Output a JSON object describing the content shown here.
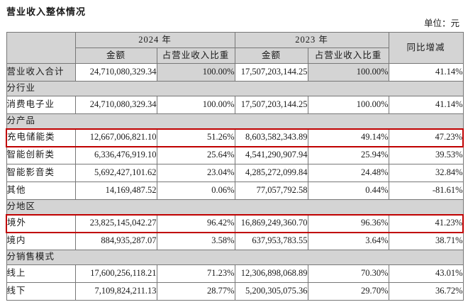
{
  "title": "营业收入整体情况",
  "unit_label": "单位：元",
  "colors": {
    "highlight_border": "#c00000",
    "cell_shade": "#d4d4d4",
    "table_border": "#777777"
  },
  "table": {
    "col_headers": {
      "year_2024": "2024 年",
      "year_2023": "2023 年",
      "amount": "金额",
      "proportion": "占营业收入比重",
      "yoy": "同比增减"
    },
    "rows": [
      {
        "type": "data",
        "label": "营业收入合计",
        "amt2024": "24,710,080,329.34",
        "pct2024": "100.00%",
        "amt2023": "17,507,203,144.25",
        "pct2023": "100.00%",
        "yoy": "41.14%",
        "shaded": true,
        "highlight": false
      },
      {
        "type": "section",
        "label": "分行业"
      },
      {
        "type": "data",
        "label": "消费电子业",
        "amt2024": "24,710,080,329.34",
        "pct2024": "100.00%",
        "amt2023": "17,507,203,144.25",
        "pct2023": "100.00%",
        "yoy": "41.14%",
        "shaded": false,
        "highlight": false
      },
      {
        "type": "section",
        "label": "分产品"
      },
      {
        "type": "data",
        "label": "充电储能类",
        "amt2024": "12,667,006,821.10",
        "pct2024": "51.26%",
        "amt2023": "8,603,582,343.89",
        "pct2023": "49.14%",
        "yoy": "47.23%",
        "shaded": false,
        "highlight": true
      },
      {
        "type": "data",
        "label": "智能创新类",
        "amt2024": "6,336,476,919.10",
        "pct2024": "25.64%",
        "amt2023": "4,541,290,907.94",
        "pct2023": "25.94%",
        "yoy": "39.53%",
        "shaded": false,
        "highlight": false
      },
      {
        "type": "data",
        "label": "智能影音类",
        "amt2024": "5,692,427,101.62",
        "pct2024": "23.04%",
        "amt2023": "4,285,272,099.84",
        "pct2023": "24.48%",
        "yoy": "32.84%",
        "shaded": false,
        "highlight": false
      },
      {
        "type": "data",
        "label": "其他",
        "amt2024": "14,169,487.52",
        "pct2024": "0.06%",
        "amt2023": "77,057,792.58",
        "pct2023": "0.44%",
        "yoy": "-81.61%",
        "shaded": false,
        "highlight": false
      },
      {
        "type": "section",
        "label": "分地区"
      },
      {
        "type": "data",
        "label": "境外",
        "amt2024": "23,825,145,042.27",
        "pct2024": "96.42%",
        "amt2023": "16,869,249,360.70",
        "pct2023": "96.36%",
        "yoy": "41.23%",
        "shaded": false,
        "highlight": true
      },
      {
        "type": "data",
        "label": "境内",
        "amt2024": "884,935,287.07",
        "pct2024": "3.58%",
        "amt2023": "637,953,783.55",
        "pct2023": "3.64%",
        "yoy": "38.71%",
        "shaded": false,
        "highlight": false
      },
      {
        "type": "section",
        "label": "分销售模式"
      },
      {
        "type": "data",
        "label": "线上",
        "amt2024": "17,600,256,118.21",
        "pct2024": "71.23%",
        "amt2023": "12,306,898,068.89",
        "pct2023": "70.30%",
        "yoy": "43.01%",
        "shaded": false,
        "highlight": false
      },
      {
        "type": "data",
        "label": "线下",
        "amt2024": "7,109,824,211.13",
        "pct2024": "28.77%",
        "amt2023": "5,200,305,075.36",
        "pct2023": "29.70%",
        "yoy": "36.72%",
        "shaded": false,
        "highlight": false
      }
    ]
  }
}
